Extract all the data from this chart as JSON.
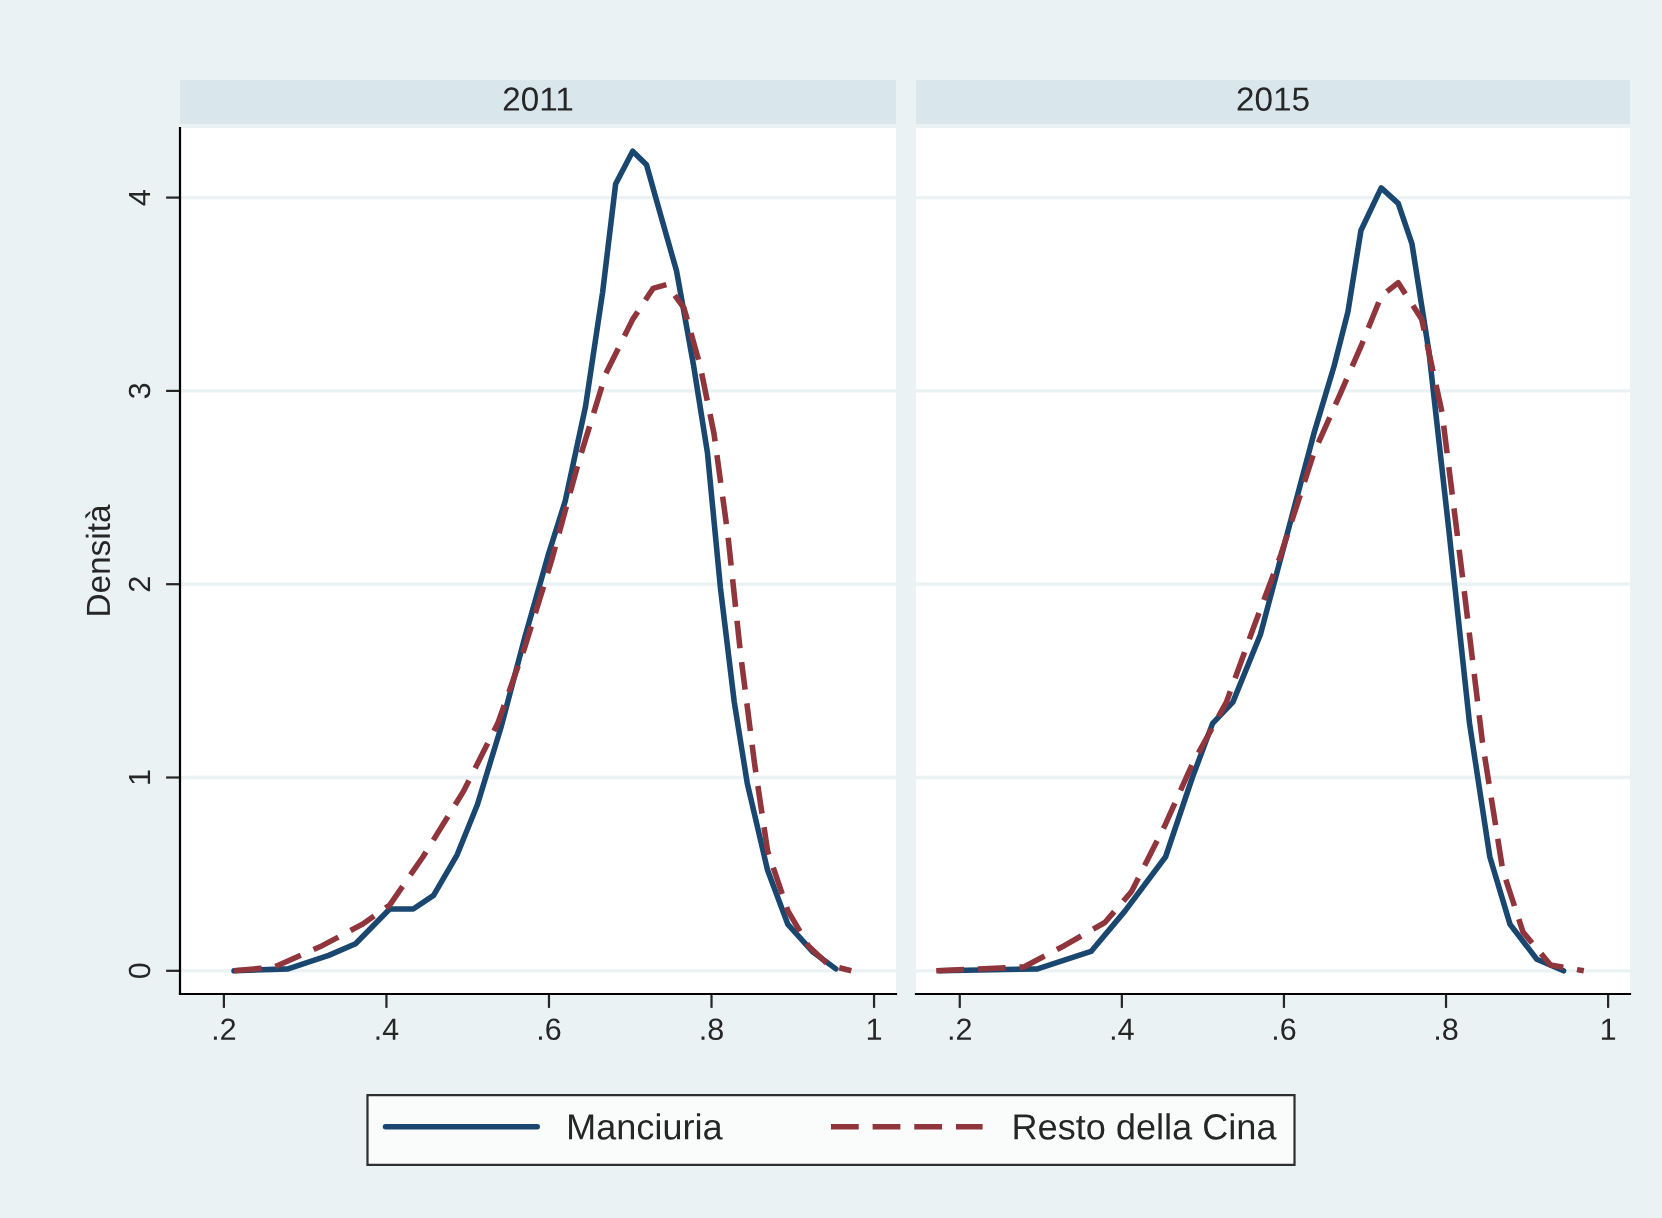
{
  "chart_data": [
    {
      "type": "line",
      "title": "2011",
      "ylabel": "Densità",
      "xlim": [
        0.146,
        1.027
      ],
      "ylim": [
        -0.12,
        4.36
      ],
      "xticks": [
        {
          "value": 0.2,
          "label": ".2"
        },
        {
          "value": 0.4,
          "label": ".4"
        },
        {
          "value": 0.6,
          "label": ".6"
        },
        {
          "value": 0.8,
          "label": ".8"
        },
        1
      ],
      "yticks": [
        0,
        1,
        2,
        3,
        4
      ],
      "grid": "y",
      "legend": "bottom",
      "series": [
        {
          "name": "Manciuria",
          "color": "#1a476f",
          "line_style": "solid",
          "x": [
            0.2125,
            0.279,
            0.329,
            0.362,
            0.404,
            0.433,
            0.458,
            0.487,
            0.512,
            0.541,
            0.57,
            0.599,
            0.62,
            0.645,
            0.666,
            0.682,
            0.703,
            0.72,
            0.736,
            0.757,
            0.778,
            0.795,
            0.811,
            0.828,
            0.844,
            0.869,
            0.894,
            0.924,
            0.953
          ],
          "values": [
            0,
            0.01,
            0.08,
            0.14,
            0.32,
            0.32,
            0.39,
            0.6,
            0.86,
            1.26,
            1.72,
            2.15,
            2.43,
            2.92,
            3.51,
            4.07,
            4.24,
            4.17,
            3.93,
            3.62,
            3.13,
            2.68,
            1.98,
            1.39,
            0.97,
            0.52,
            0.24,
            0.1,
            0.01
          ]
        },
        {
          "name": "Resto della Cina",
          "color": "#90353b",
          "line_style": "dashed",
          "x": [
            0.2125,
            0.262,
            0.321,
            0.37,
            0.404,
            0.445,
            0.495,
            0.537,
            0.57,
            0.603,
            0.637,
            0.67,
            0.703,
            0.728,
            0.745,
            0.766,
            0.786,
            0.803,
            0.82,
            0.836,
            0.853,
            0.869,
            0.894,
            0.919,
            0.944,
            0.972
          ],
          "values": [
            0,
            0.02,
            0.13,
            0.24,
            0.34,
            0.59,
            0.93,
            1.28,
            1.67,
            2.12,
            2.64,
            3.09,
            3.37,
            3.53,
            3.55,
            3.43,
            3.13,
            2.78,
            2.26,
            1.63,
            1.07,
            0.62,
            0.31,
            0.13,
            0.03,
            0
          ]
        }
      ]
    },
    {
      "type": "line",
      "title": "2015",
      "xlim": [
        0.146,
        1.027
      ],
      "ylim": [
        -0.12,
        4.36
      ],
      "xticks": [
        {
          "value": 0.2,
          "label": ".2"
        },
        {
          "value": 0.4,
          "label": ".4"
        },
        {
          "value": 0.6,
          "label": ".6"
        },
        {
          "value": 0.8,
          "label": ".8"
        },
        1
      ],
      "yticks": [
        0,
        1,
        2,
        3,
        4
      ],
      "grid": "y",
      "tick_labels": "x",
      "series": [
        {
          "color": "#1a476f",
          "line_style": "solid",
          "x": [
            0.175,
            0.296,
            0.362,
            0.404,
            0.454,
            0.487,
            0.512,
            0.537,
            0.571,
            0.604,
            0.637,
            0.662,
            0.679,
            0.695,
            0.72,
            0.741,
            0.758,
            0.779,
            0.804,
            0.829,
            0.854,
            0.879,
            0.912,
            0.945
          ],
          "values": [
            0,
            0.01,
            0.1,
            0.31,
            0.59,
            1.0,
            1.28,
            1.39,
            1.74,
            2.26,
            2.78,
            3.13,
            3.41,
            3.83,
            4.05,
            3.97,
            3.76,
            3.2,
            2.26,
            1.28,
            0.59,
            0.24,
            0.06,
            0
          ]
        },
        {
          "color": "#90353b",
          "line_style": "dashed",
          "x": [
            0.171,
            0.279,
            0.329,
            0.379,
            0.412,
            0.454,
            0.487,
            0.529,
            0.562,
            0.596,
            0.637,
            0.67,
            0.695,
            0.72,
            0.741,
            0.77,
            0.795,
            0.82,
            0.845,
            0.87,
            0.895,
            0.929,
            0.97
          ],
          "values": [
            0,
            0.02,
            0.13,
            0.25,
            0.41,
            0.76,
            1.07,
            1.39,
            1.77,
            2.15,
            2.68,
            2.99,
            3.23,
            3.49,
            3.56,
            3.37,
            2.89,
            2.05,
            1.18,
            0.52,
            0.2,
            0.03,
            0
          ]
        }
      ]
    }
  ]
}
